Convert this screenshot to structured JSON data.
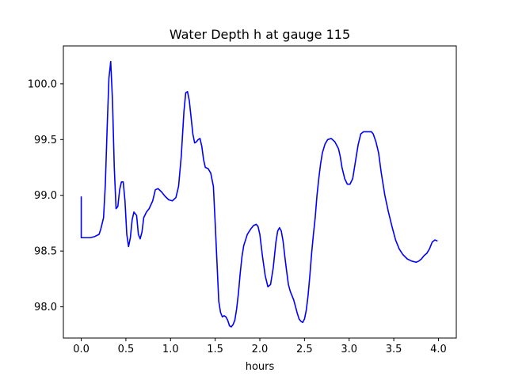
{
  "chart_data": {
    "type": "line",
    "title": "Water Depth h at gauge 115",
    "xlabel": "hours",
    "ylabel": "",
    "xlim": [
      -0.2,
      4.2
    ],
    "ylim": [
      97.72,
      100.34
    ],
    "xticks": [
      0.0,
      0.5,
      1.0,
      1.5,
      2.0,
      2.5,
      3.0,
      3.5,
      4.0
    ],
    "xtick_labels": [
      "0.0",
      "0.5",
      "1.0",
      "1.5",
      "2.0",
      "2.5",
      "3.0",
      "3.5",
      "4.0"
    ],
    "yticks": [
      98.0,
      98.5,
      99.0,
      99.5,
      100.0
    ],
    "ytick_labels": [
      "98.0",
      "98.5",
      "99.0",
      "99.5",
      "100.0"
    ],
    "grid": false,
    "line_color": "#0000ff",
    "series": [
      {
        "x": [
          0.0,
          0.0,
          0.05,
          0.1,
          0.15,
          0.2,
          0.22,
          0.25,
          0.27,
          0.29,
          0.31,
          0.33,
          0.35,
          0.37,
          0.39,
          0.41,
          0.43,
          0.45,
          0.47,
          0.49,
          0.51,
          0.53,
          0.55,
          0.57,
          0.59,
          0.62,
          0.64,
          0.66,
          0.68,
          0.7,
          0.73,
          0.76,
          0.8,
          0.83,
          0.86,
          0.9,
          0.94,
          0.98,
          1.02,
          1.06,
          1.09,
          1.12,
          1.15,
          1.17,
          1.19,
          1.21,
          1.23,
          1.25,
          1.27,
          1.29,
          1.31,
          1.33,
          1.35,
          1.37,
          1.39,
          1.42,
          1.45,
          1.48,
          1.5,
          1.52,
          1.54,
          1.56,
          1.58,
          1.6,
          1.62,
          1.64,
          1.66,
          1.68,
          1.7,
          1.72,
          1.74,
          1.76,
          1.78,
          1.8,
          1.82,
          1.84,
          1.86,
          1.9,
          1.93,
          1.96,
          1.98,
          2.0,
          2.03,
          2.06,
          2.09,
          2.12,
          2.15,
          2.18,
          2.2,
          2.22,
          2.24,
          2.26,
          2.28,
          2.3,
          2.32,
          2.34,
          2.36,
          2.38,
          2.4,
          2.42,
          2.44,
          2.46,
          2.48,
          2.5,
          2.52,
          2.54,
          2.56,
          2.58,
          2.6,
          2.62,
          2.64,
          2.66,
          2.68,
          2.7,
          2.73,
          2.76,
          2.8,
          2.84,
          2.88,
          2.9,
          2.92,
          2.95,
          2.98,
          3.01,
          3.04,
          3.06,
          3.08,
          3.1,
          3.13,
          3.16,
          3.19,
          3.22,
          3.25,
          3.27,
          3.3,
          3.33,
          3.36,
          3.4,
          3.44,
          3.48,
          3.52,
          3.56,
          3.6,
          3.65,
          3.7,
          3.75,
          3.78,
          3.81,
          3.84,
          3.87,
          3.9,
          3.93,
          3.96,
          3.99
        ],
        "y": [
          98.99,
          98.62,
          98.62,
          98.62,
          98.63,
          98.65,
          98.7,
          98.8,
          99.1,
          99.6,
          100.05,
          100.2,
          99.85,
          99.25,
          98.88,
          98.9,
          99.05,
          99.12,
          99.12,
          98.95,
          98.65,
          98.54,
          98.62,
          98.78,
          98.85,
          98.82,
          98.65,
          98.61,
          98.67,
          98.8,
          98.85,
          98.88,
          98.95,
          99.05,
          99.06,
          99.03,
          98.99,
          98.96,
          98.95,
          98.98,
          99.08,
          99.35,
          99.75,
          99.92,
          99.93,
          99.85,
          99.7,
          99.55,
          99.47,
          99.48,
          99.5,
          99.51,
          99.44,
          99.32,
          99.25,
          99.24,
          99.2,
          99.08,
          98.75,
          98.4,
          98.05,
          97.95,
          97.91,
          97.92,
          97.91,
          97.88,
          97.83,
          97.82,
          97.84,
          97.88,
          97.98,
          98.12,
          98.3,
          98.45,
          98.55,
          98.6,
          98.65,
          98.7,
          98.73,
          98.74,
          98.72,
          98.65,
          98.45,
          98.28,
          98.18,
          98.2,
          98.35,
          98.58,
          98.68,
          98.71,
          98.68,
          98.59,
          98.45,
          98.32,
          98.2,
          98.14,
          98.1,
          98.06,
          98.0,
          97.94,
          97.89,
          97.87,
          97.86,
          97.89,
          97.97,
          98.1,
          98.28,
          98.48,
          98.65,
          98.8,
          99.0,
          99.15,
          99.28,
          99.38,
          99.46,
          99.5,
          99.51,
          99.48,
          99.42,
          99.35,
          99.25,
          99.15,
          99.1,
          99.1,
          99.15,
          99.25,
          99.35,
          99.45,
          99.55,
          99.57,
          99.57,
          99.57,
          99.57,
          99.55,
          99.48,
          99.38,
          99.2,
          99.0,
          98.85,
          98.72,
          98.6,
          98.52,
          98.47,
          98.43,
          98.41,
          98.4,
          98.41,
          98.43,
          98.46,
          98.48,
          98.52,
          98.58,
          98.6,
          98.59
        ]
      }
    ]
  }
}
